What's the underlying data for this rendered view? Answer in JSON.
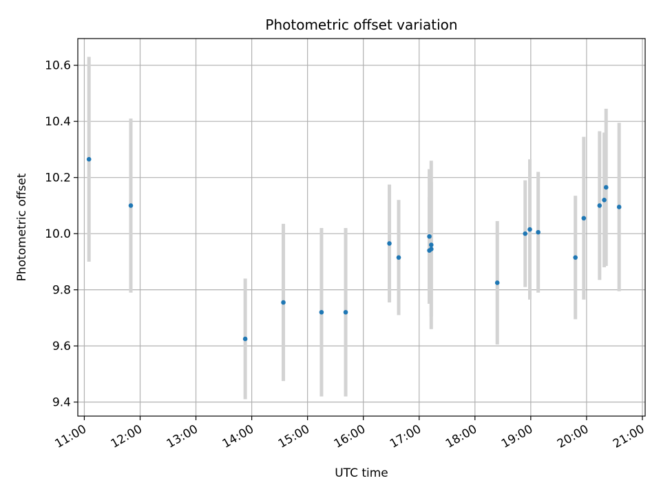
{
  "chart_data": {
    "type": "scatter",
    "title": "Photometric offset variation",
    "xlabel": "UTC time",
    "ylabel": "Photometric offset",
    "xlim": [
      "10:53",
      "21:03"
    ],
    "ylim": [
      9.35,
      10.695
    ],
    "x_ticks": [
      "11:00",
      "12:00",
      "13:00",
      "14:00",
      "15:00",
      "16:00",
      "17:00",
      "18:00",
      "19:00",
      "20:00",
      "21:00"
    ],
    "y_ticks": [
      9.4,
      9.6,
      9.8,
      10.0,
      10.2,
      10.4,
      10.6
    ],
    "y_tick_labels": [
      "9.4",
      "9.6",
      "9.8",
      "10.0",
      "10.2",
      "10.4",
      "10.6"
    ],
    "grid": true,
    "point_color": "#1f77b4",
    "errorbar_color": "#d3d3d3",
    "points": [
      {
        "t": "11:05",
        "y": 10.265,
        "err": 0.365
      },
      {
        "t": "11:50",
        "y": 10.1,
        "err": 0.31
      },
      {
        "t": "13:53",
        "y": 9.625,
        "err": 0.215
      },
      {
        "t": "14:34",
        "y": 9.755,
        "err": 0.28
      },
      {
        "t": "15:15",
        "y": 9.72,
        "err": 0.3
      },
      {
        "t": "15:41",
        "y": 9.72,
        "err": 0.3
      },
      {
        "t": "16:28",
        "y": 9.965,
        "err": 0.21
      },
      {
        "t": "16:38",
        "y": 9.915,
        "err": 0.205
      },
      {
        "t": "17:11",
        "y": 9.99,
        "err": 0.24
      },
      {
        "t": "17:11",
        "y": 9.94,
        "err": 0.19
      },
      {
        "t": "17:13",
        "y": 9.96,
        "err": 0.3
      },
      {
        "t": "17:13",
        "y": 9.945,
        "err": 0.24
      },
      {
        "t": "18:24",
        "y": 9.825,
        "err": 0.22
      },
      {
        "t": "18:54",
        "y": 10.0,
        "err": 0.19
      },
      {
        "t": "18:59",
        "y": 10.015,
        "err": 0.25
      },
      {
        "t": "19:08",
        "y": 10.005,
        "err": 0.215
      },
      {
        "t": "19:48",
        "y": 9.915,
        "err": 0.22
      },
      {
        "t": "19:57",
        "y": 10.055,
        "err": 0.29
      },
      {
        "t": "20:14",
        "y": 10.1,
        "err": 0.265
      },
      {
        "t": "20:19",
        "y": 10.12,
        "err": 0.24
      },
      {
        "t": "20:21",
        "y": 10.165,
        "err": 0.28
      },
      {
        "t": "20:35",
        "y": 10.095,
        "err": 0.3
      }
    ]
  }
}
